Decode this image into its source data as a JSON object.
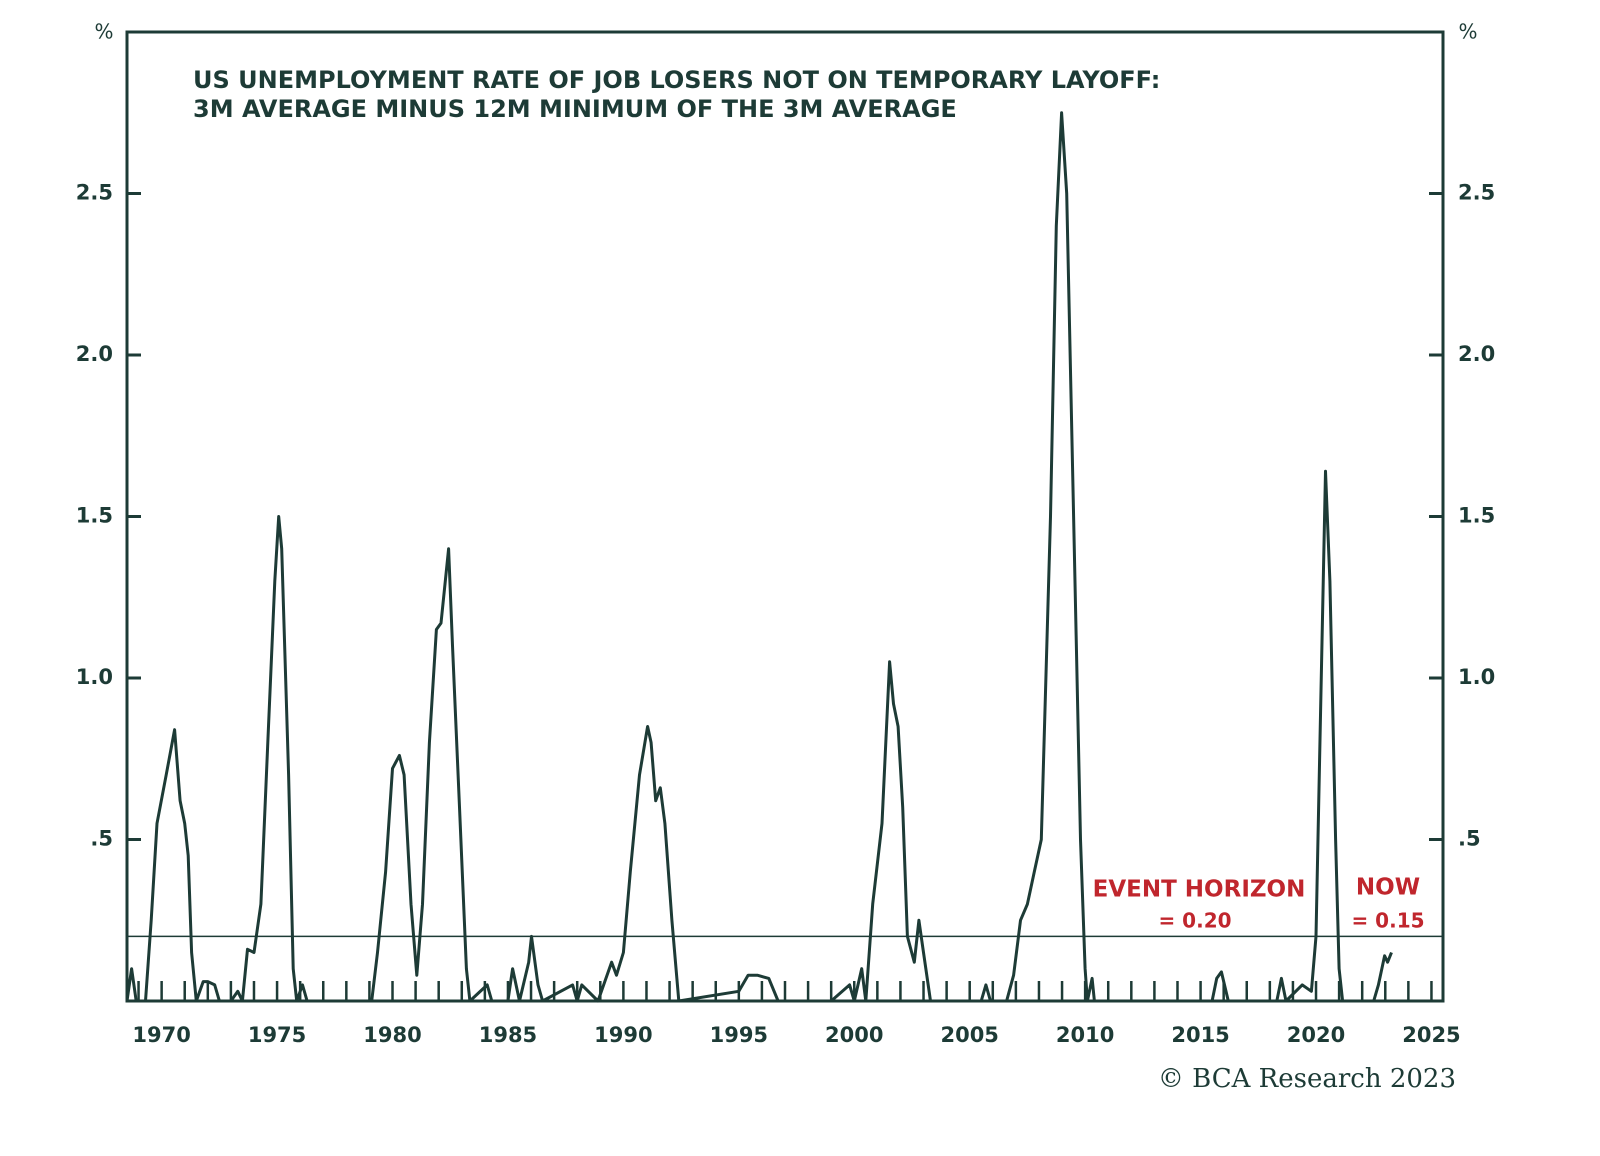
{
  "chart_data": {
    "type": "line",
    "title": [
      "US UNEMPLOYMENT RATE OF JOB LOSERS NOT ON TEMPORARY LAYOFF:",
      "3M AVERAGE MINUS 12M MINIMUM OF THE 3M AVERAGE"
    ],
    "ylabel": "%",
    "y2label": "%",
    "source": "© BCA Research 2023",
    "xlim": [
      1968.5,
      2025.5
    ],
    "xticks": [
      1970,
      1975,
      1980,
      1985,
      1990,
      1995,
      2000,
      2005,
      2010,
      2015,
      2020,
      2025
    ],
    "xminorticks": [
      1969,
      1970,
      1971,
      1972,
      1973,
      1974,
      1975,
      1976,
      1977,
      1978,
      1979,
      1980,
      1981,
      1982,
      1983,
      1984,
      1985,
      1986,
      1987,
      1988,
      1989,
      1990,
      1991,
      1992,
      1993,
      1994,
      1995,
      1996,
      1997,
      1998,
      1999,
      2000,
      2001,
      2002,
      2003,
      2004,
      2005,
      2006,
      2007,
      2008,
      2009,
      2010,
      2011,
      2012,
      2013,
      2014,
      2015,
      2016,
      2017,
      2018,
      2019,
      2020,
      2021,
      2022,
      2023,
      2024,
      2025
    ],
    "ylim": [
      0,
      3
    ],
    "yticks": [
      {
        "value": 0.5,
        "label": ".5"
      },
      {
        "value": 1,
        "label": "1.0"
      },
      {
        "value": 1.5,
        "label": "1.5"
      },
      {
        "value": 2,
        "label": "2.0"
      },
      {
        "value": 2.5,
        "label": "2.5"
      }
    ],
    "y2lim": [
      0,
      3
    ],
    "y2ticks": [
      {
        "value": 0.5,
        "label": ".5"
      },
      {
        "value": 1,
        "label": "1.0"
      },
      {
        "value": 1.5,
        "label": "1.5"
      },
      {
        "value": 2,
        "label": "2.0"
      },
      {
        "value": 2.5,
        "label": "2.5"
      }
    ],
    "threshold": {
      "value": 0.2,
      "label": "EVENT HORIZON",
      "value_label": "= 0.20"
    },
    "now": {
      "value": 0.15,
      "label": "NOW",
      "value_label": "= 0.15"
    },
    "series": [
      {
        "color": "#1d3b36",
        "x": [
          1968.5,
          1968.7,
          1968.9,
          1969.3,
          1969.55,
          1969.8,
          1970.2,
          1970.56,
          1970.8,
          1971.0,
          1971.15,
          1971.3,
          1971.5,
          1971.8,
          1972.0,
          1972.3,
          1972.5,
          1973.0,
          1973.3,
          1973.5,
          1973.72,
          1974.0,
          1974.3,
          1974.6,
          1974.9,
          1975.07,
          1975.2,
          1975.5,
          1975.7,
          1975.85,
          1976.1,
          1976.3,
          1979.1,
          1979.35,
          1979.7,
          1980.0,
          1980.3,
          1980.5,
          1980.8,
          1981.05,
          1981.3,
          1981.6,
          1981.9,
          1982.1,
          1982.43,
          1982.6,
          1982.9,
          1983.2,
          1983.35,
          1984.1,
          1984.3,
          1985.0,
          1985.2,
          1985.5,
          1985.9,
          1986.02,
          1986.3,
          1986.5,
          1987.8,
          1988.0,
          1988.2,
          1988.9,
          1989.49,
          1989.7,
          1990.0,
          1990.3,
          1990.7,
          1991.05,
          1991.2,
          1991.4,
          1991.6,
          1991.8,
          1992.1,
          1992.4,
          1995.0,
          1995.4,
          1995.8,
          1996.3,
          1996.7,
          1999.0,
          1999.8,
          2000.0,
          2000.32,
          2000.5,
          2000.8,
          2001.2,
          2001.53,
          2001.7,
          2001.9,
          2002.1,
          2002.3,
          2002.6,
          2002.8,
          2003.0,
          2003.3,
          2005.5,
          2005.7,
          2005.9,
          2006.6,
          2006.9,
          2007.2,
          2007.5,
          2007.8,
          2008.1,
          2008.5,
          2008.75,
          2008.98,
          2009.2,
          2009.5,
          2009.8,
          2010.0,
          2010.1,
          2010.3,
          2010.4,
          2015.5,
          2015.7,
          2015.9,
          2016.2,
          2018.3,
          2018.5,
          2018.7,
          2019.4,
          2019.8,
          2020.0,
          2020.2,
          2020.41,
          2020.6,
          2020.85,
          2021.0,
          2021.15,
          2022.5,
          2022.7,
          2022.97,
          2023.1,
          2023.27
        ],
        "values": [
          0,
          0.1,
          0,
          0,
          0.25,
          0.55,
          0.7,
          0.84,
          0.62,
          0.55,
          0.45,
          0.15,
          0,
          0.06,
          0.06,
          0.05,
          0,
          0,
          0.03,
          0,
          0.16,
          0.15,
          0.3,
          0.8,
          1.3,
          1.5,
          1.4,
          0.7,
          0.1,
          0,
          0.05,
          0,
          0,
          0.15,
          0.4,
          0.72,
          0.76,
          0.7,
          0.3,
          0.08,
          0.3,
          0.8,
          1.15,
          1.17,
          1.4,
          1.1,
          0.6,
          0.1,
          0,
          0.05,
          0,
          0,
          0.1,
          0,
          0.12,
          0.2,
          0.05,
          0,
          0.05,
          0,
          0.05,
          0,
          0.12,
          0.08,
          0.15,
          0.4,
          0.7,
          0.85,
          0.8,
          0.62,
          0.66,
          0.55,
          0.25,
          0,
          0.03,
          0.08,
          0.08,
          0.07,
          0,
          0,
          0.05,
          0,
          0.1,
          0,
          0.3,
          0.55,
          1.05,
          0.92,
          0.85,
          0.6,
          0.2,
          0.12,
          0.25,
          0.15,
          0,
          0,
          0.05,
          0,
          0,
          0.08,
          0.25,
          0.3,
          0.4,
          0.5,
          1.5,
          2.4,
          2.75,
          2.5,
          1.5,
          0.5,
          0.1,
          0,
          0.07,
          0,
          0,
          0.07,
          0.09,
          0,
          0,
          0.07,
          0,
          0.05,
          0.03,
          0.2,
          0.9,
          1.64,
          1.3,
          0.5,
          0.1,
          0,
          0,
          0.05,
          0.14,
          0.12,
          0.15
        ]
      }
    ]
  }
}
